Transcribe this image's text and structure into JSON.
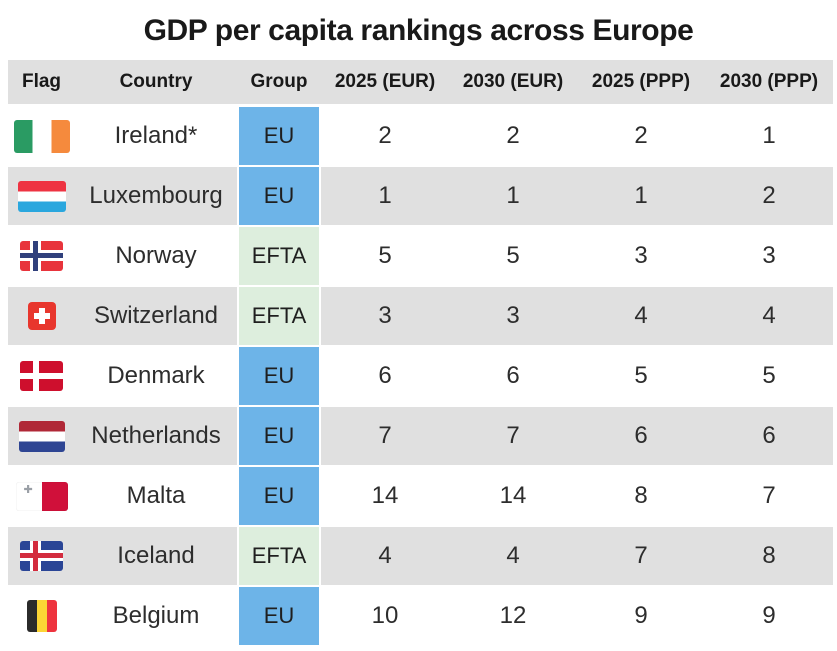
{
  "title": "GDP per capita rankings across Europe",
  "theme": {
    "stripe_gray": "#e0e0e0",
    "header_gray": "#e0e0e0",
    "eu_blue": "#6db4e8",
    "efta_green": "#ddeedd",
    "title_color": "#191919",
    "text_color": "#2d2d2d"
  },
  "chart_data": {
    "type": "table",
    "title": "GDP per capita rankings across Europe",
    "columns": [
      "Flag",
      "Country",
      "Group",
      "2025 (EUR)",
      "2030 (EUR)",
      "2025 (PPP)",
      "2030 (PPP)"
    ],
    "group_colors": {
      "EU": "#6db4e8",
      "EFTA": "#ddeedd"
    },
    "layout": {
      "striped_rows": true,
      "stripe_color": "#e0e0e0",
      "values_alignment": "center"
    },
    "rows": [
      {
        "country": "Ireland*",
        "code": "ie",
        "flag_icon": "ireland-flag-icon",
        "group": "EU",
        "values": [
          2,
          2,
          2,
          1
        ]
      },
      {
        "country": "Luxembourg",
        "code": "lu",
        "flag_icon": "luxembourg-flag-icon",
        "group": "EU",
        "values": [
          1,
          1,
          1,
          2
        ]
      },
      {
        "country": "Norway",
        "code": "no",
        "flag_icon": "norway-flag-icon",
        "group": "EFTA",
        "values": [
          5,
          5,
          3,
          3
        ]
      },
      {
        "country": "Switzerland",
        "code": "ch",
        "flag_icon": "switzerland-flag-icon",
        "group": "EFTA",
        "values": [
          3,
          3,
          4,
          4
        ]
      },
      {
        "country": "Denmark",
        "code": "dk",
        "flag_icon": "denmark-flag-icon",
        "group": "EU",
        "values": [
          6,
          6,
          5,
          5
        ]
      },
      {
        "country": "Netherlands",
        "code": "nl",
        "flag_icon": "netherlands-flag-icon",
        "group": "EU",
        "values": [
          7,
          7,
          6,
          6
        ]
      },
      {
        "country": "Malta",
        "code": "mt",
        "flag_icon": "malta-flag-icon",
        "group": "EU",
        "values": [
          14,
          14,
          8,
          7
        ]
      },
      {
        "country": "Iceland",
        "code": "is",
        "flag_icon": "iceland-flag-icon",
        "group": "EFTA",
        "values": [
          4,
          4,
          7,
          8
        ]
      },
      {
        "country": "Belgium",
        "code": "be",
        "flag_icon": "belgium-flag-icon",
        "group": "EU",
        "values": [
          10,
          12,
          9,
          9
        ]
      }
    ]
  }
}
